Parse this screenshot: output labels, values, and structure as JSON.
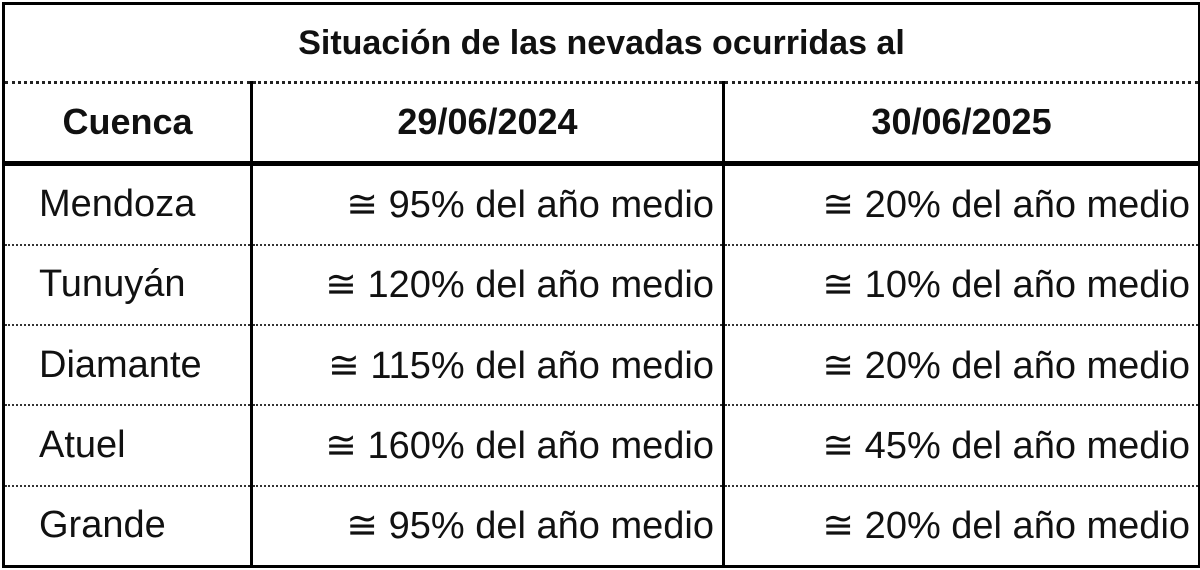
{
  "table": {
    "title": "Situación de las nevadas ocurridas al",
    "header": [
      "Cuenca",
      "29/06/2024",
      "30/06/2025"
    ],
    "rows": [
      [
        "Mendoza",
        "≅ 95% del año medio",
        "≅ 20% del año medio"
      ],
      [
        "Tunuyán",
        "≅ 120% del año medio",
        "≅ 10% del año medio"
      ],
      [
        "Diamante",
        "≅ 115% del año medio",
        "≅ 20% del año medio"
      ],
      [
        "Atuel",
        "≅ 160% del año medio",
        "≅ 45% del año medio"
      ],
      [
        "Grande",
        "≅ 95% del año medio",
        "≅ 20% del año medio"
      ]
    ]
  }
}
